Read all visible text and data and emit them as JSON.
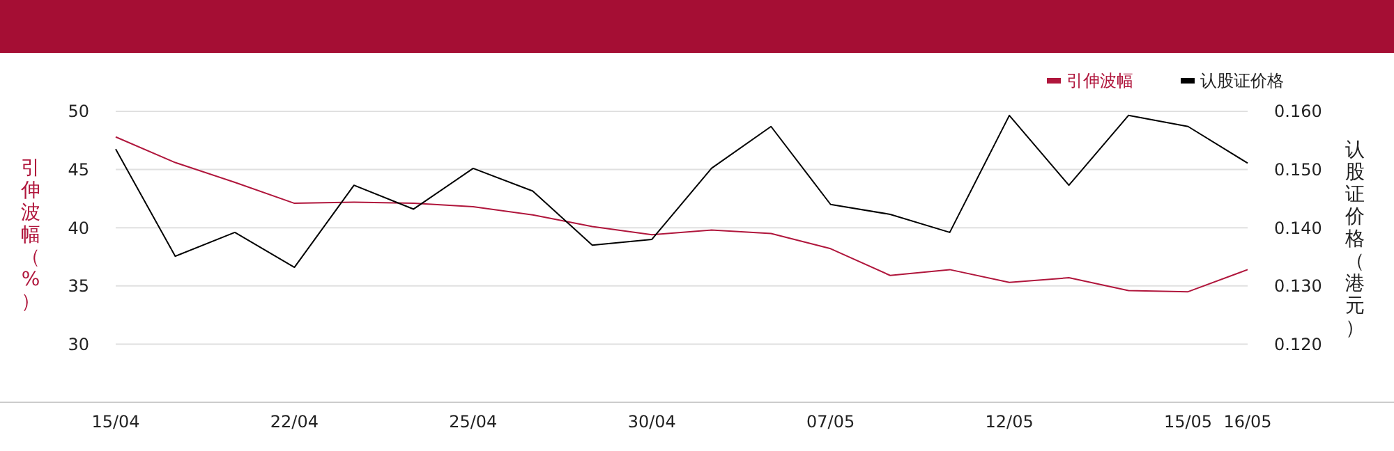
{
  "chart_data": {
    "type": "line",
    "categories": [
      "15/04",
      null,
      null,
      "22/04",
      null,
      null,
      "25/04",
      null,
      null,
      "30/04",
      null,
      null,
      "07/05",
      null,
      null,
      "12/05",
      null,
      null,
      "15/05",
      "16/05"
    ],
    "series": [
      {
        "name": "引伸波幅",
        "color": "#b0163c",
        "values": [
          47.8,
          45.6,
          43.9,
          42.1,
          42.2,
          42.1,
          41.8,
          41.1,
          40.1,
          39.4,
          39.8,
          39.5,
          38.2,
          35.9,
          36.4,
          35.3,
          35.7,
          34.6,
          34.5,
          36.4
        ]
      },
      {
        "name": "认股证价格",
        "color": "#000000",
        "axis": "y2",
        "values": [
          0.1535,
          0.1351,
          0.1392,
          0.1332,
          0.1473,
          0.1432,
          0.1502,
          0.1463,
          0.137,
          0.138,
          0.1502,
          0.1574,
          0.144,
          0.1423,
          0.1392,
          0.1593,
          0.1473,
          0.1593,
          0.1574,
          0.1511
        ]
      }
    ],
    "ylabel": "引伸波幅（%）",
    "y2label": "认股证价格（港元）",
    "ylim": [
      25,
      50
    ],
    "yticks": [
      30,
      35,
      40,
      45,
      50
    ],
    "y2lim": [
      0.11,
      0.16
    ],
    "y2ticks": [
      {
        "value": 0.12,
        "label": "0.120"
      },
      {
        "value": 0.13,
        "label": "0.130"
      },
      {
        "value": 0.14,
        "label": "0.140"
      },
      {
        "value": 0.15,
        "label": "0.150"
      },
      {
        "value": 0.16,
        "label": "0.160"
      }
    ],
    "grid": "y",
    "legend": "top right",
    "marker": "none",
    "line_style": "solid"
  }
}
